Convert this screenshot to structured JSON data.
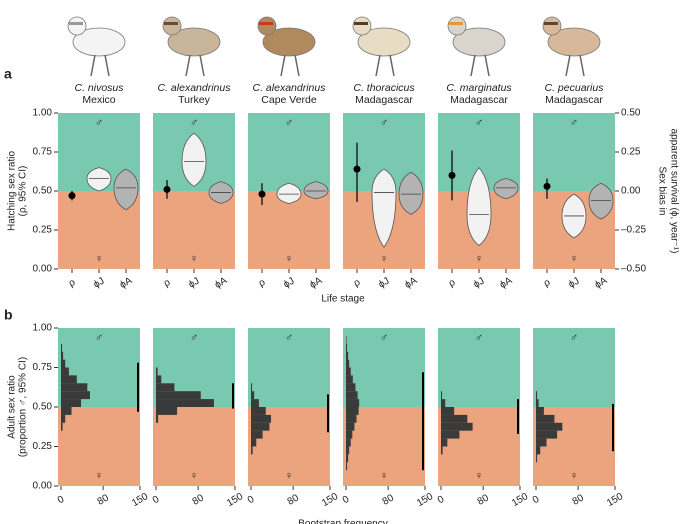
{
  "chart_data": [
    {
      "type": "violin",
      "label": "a",
      "ylabel": [
        "Hatching sex ratio",
        "(ρ, 95% CI)"
      ],
      "y2label": [
        "Sex bias in",
        "apparent survival (ϕ, year⁻¹)"
      ],
      "xlabel": "Life stage",
      "ylim": [
        0,
        1
      ],
      "yticks": [
        {
          "value": 0,
          "label": "0.00"
        },
        {
          "value": 0.25,
          "label": "0.25"
        },
        {
          "value": 0.5,
          "label": "0.50"
        },
        {
          "value": 0.75,
          "label": "0.75"
        },
        {
          "value": 1,
          "label": "1.00"
        }
      ],
      "y2lim": [
        -0.5,
        0.5
      ],
      "y2ticks": [
        {
          "value": -0.5,
          "label": "–0.50"
        },
        {
          "value": -0.25,
          "label": "–0.25"
        },
        {
          "value": 0,
          "label": "0.00"
        },
        {
          "value": 0.25,
          "label": "0.25"
        },
        {
          "value": 0.5,
          "label": "0.50"
        }
      ],
      "categories": [
        "ρ",
        "ϕJ",
        "ϕA"
      ],
      "male_symbol": "♂",
      "female_symbol": "♀",
      "split": 0.5,
      "colors": {
        "upper": "#79c9b1",
        "lower": "#eca47f",
        "juvenile": "#f2f2f2",
        "adult": "#b3b3b3"
      },
      "facets": [
        {
          "species": "C. nivosus",
          "location": "Mexico",
          "rho": {
            "value": 0.47,
            "ci": [
              0.44,
              0.5
            ]
          },
          "phiJ": {
            "median": 0.08,
            "range": [
              0.0,
              0.15
            ]
          },
          "phiA": {
            "median": 0.02,
            "range": [
              -0.12,
              0.14
            ]
          }
        },
        {
          "species": "C. alexandrinus",
          "location": "Turkey",
          "rho": {
            "value": 0.51,
            "ci": [
              0.45,
              0.57
            ]
          },
          "phiJ": {
            "median": 0.19,
            "range": [
              0.03,
              0.37
            ]
          },
          "phiA": {
            "median": -0.01,
            "range": [
              -0.08,
              0.06
            ]
          }
        },
        {
          "species": "C. alexandrinus",
          "location": "Cape Verde",
          "rho": {
            "value": 0.48,
            "ci": [
              0.41,
              0.55
            ]
          },
          "phiJ": {
            "median": -0.02,
            "range": [
              -0.08,
              0.05
            ]
          },
          "phiA": {
            "median": 0.0,
            "range": [
              -0.05,
              0.06
            ]
          }
        },
        {
          "species": "C. thoracicus",
          "location": "Madagascar",
          "rho": {
            "value": 0.64,
            "ci": [
              0.43,
              0.81
            ]
          },
          "phiJ": {
            "median": -0.01,
            "range": [
              -0.36,
              0.14
            ]
          },
          "phiA": {
            "median": -0.02,
            "range": [
              -0.15,
              0.12
            ]
          }
        },
        {
          "species": "C. marginatus",
          "location": "Madagascar",
          "rho": {
            "value": 0.6,
            "ci": [
              0.44,
              0.76
            ]
          },
          "phiJ": {
            "median": -0.15,
            "range": [
              -0.35,
              0.15
            ]
          },
          "phiA": {
            "median": 0.02,
            "range": [
              -0.05,
              0.08
            ]
          }
        },
        {
          "species": "C. pecuarius",
          "location": "Madagascar",
          "rho": {
            "value": 0.53,
            "ci": [
              0.45,
              0.58
            ]
          },
          "phiJ": {
            "median": -0.16,
            "range": [
              -0.3,
              -0.02
            ]
          },
          "phiA": {
            "median": -0.06,
            "range": [
              -0.18,
              0.05
            ]
          }
        }
      ]
    },
    {
      "type": "histogram",
      "label": "b",
      "ylabel": [
        "Adult sex ratio",
        "(proportion ♂, 95% CI)"
      ],
      "xlabel": "Bootstrap frequency",
      "ylim": [
        0,
        1
      ],
      "yticks": [
        {
          "value": 0,
          "label": "0.00"
        },
        {
          "value": 0.25,
          "label": "0.25"
        },
        {
          "value": 0.5,
          "label": "0.50"
        },
        {
          "value": 0.75,
          "label": "0.75"
        },
        {
          "value": 1,
          "label": "1.00"
        }
      ],
      "xlim": [
        0,
        150
      ],
      "xticks": [
        0,
        80,
        150
      ],
      "male_symbol": "♂",
      "female_symbol": "♀",
      "split": 0.5,
      "colors": {
        "upper": "#79c9b1",
        "lower": "#eca47f",
        "bars": "#3a3a3a"
      },
      "facets": [
        {
          "bins": [
            0.35,
            0.4,
            0.45,
            0.5,
            0.55,
            0.6,
            0.65,
            0.7,
            0.75,
            0.8,
            0.85,
            0.9
          ],
          "counts": [
            3,
            8,
            20,
            38,
            55,
            50,
            30,
            15,
            8,
            4,
            2
          ],
          "ci": [
            0.47,
            0.78
          ]
        },
        {
          "bins": [
            0.4,
            0.45,
            0.5,
            0.55,
            0.6,
            0.65,
            0.7,
            0.75
          ],
          "counts": [
            4,
            40,
            110,
            85,
            35,
            10,
            3
          ],
          "ci": [
            0.49,
            0.65
          ]
        },
        {
          "bins": [
            0.2,
            0.25,
            0.3,
            0.35,
            0.4,
            0.45,
            0.5,
            0.55,
            0.6,
            0.65
          ],
          "counts": [
            3,
            10,
            22,
            35,
            38,
            28,
            15,
            6,
            2
          ],
          "ci": [
            0.34,
            0.58
          ]
        },
        {
          "bins": [
            0.1,
            0.15,
            0.2,
            0.25,
            0.3,
            0.35,
            0.4,
            0.45,
            0.5,
            0.55,
            0.6,
            0.65,
            0.7,
            0.75,
            0.8,
            0.85,
            0.9,
            0.95
          ],
          "counts": [
            2,
            4,
            6,
            9,
            12,
            16,
            20,
            24,
            25,
            22,
            18,
            13,
            9,
            6,
            4,
            2,
            1
          ],
          "ci": [
            0.1,
            0.72
          ]
        },
        {
          "bins": [
            0.2,
            0.25,
            0.3,
            0.35,
            0.4,
            0.45,
            0.5,
            0.55,
            0.6
          ],
          "counts": [
            3,
            12,
            35,
            60,
            50,
            25,
            8,
            2
          ],
          "ci": [
            0.33,
            0.55
          ]
        },
        {
          "bins": [
            0.15,
            0.2,
            0.25,
            0.3,
            0.35,
            0.4,
            0.45,
            0.5,
            0.55,
            0.6
          ],
          "counts": [
            2,
            8,
            20,
            40,
            50,
            35,
            15,
            5,
            2
          ],
          "ci": [
            0.22,
            0.52
          ]
        }
      ]
    }
  ]
}
